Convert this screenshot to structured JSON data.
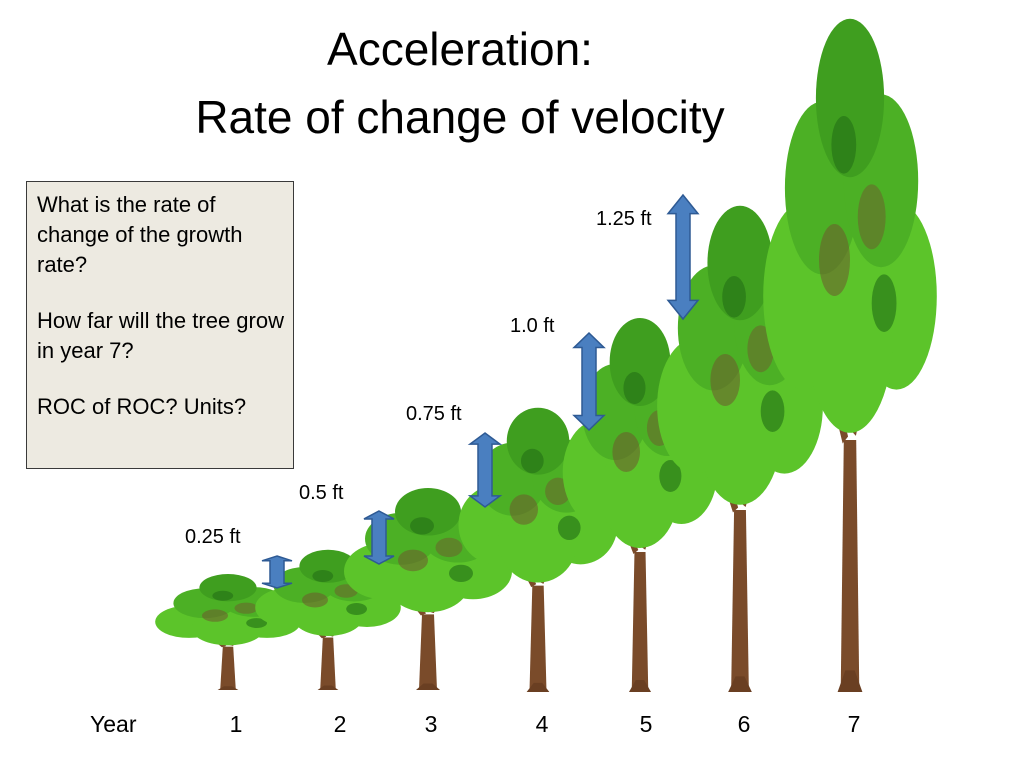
{
  "title": {
    "line1": "Acceleration:",
    "line2": "Rate of change of velocity"
  },
  "question_box": {
    "q1": "What is the rate of change of the growth rate?",
    "q2": "How far will the tree grow in year 7?",
    "q3": "ROC of ROC?  Units?"
  },
  "year_label": "Year",
  "years": [
    "1",
    "2",
    "3",
    "4",
    "5",
    "6",
    "7"
  ],
  "growth_labels": [
    "0.25 ft",
    "0.5 ft",
    "0.75 ft",
    "1.0 ft",
    "1.25 ft"
  ],
  "growth_ft": [
    0.25,
    0.5,
    0.75,
    1.0,
    1.25
  ],
  "colors": {
    "leaf_light": "#5cc42a",
    "leaf_mid": "#3f9e1f",
    "leaf_dark": "#2a7a18",
    "trunk": "#7a4b2a",
    "arrow_fill": "#4a7fc0",
    "arrow_stroke": "#2e5a94",
    "box_fill": "#edeae1"
  },
  "icons": [
    "tree-icon",
    "double-arrow-icon"
  ]
}
